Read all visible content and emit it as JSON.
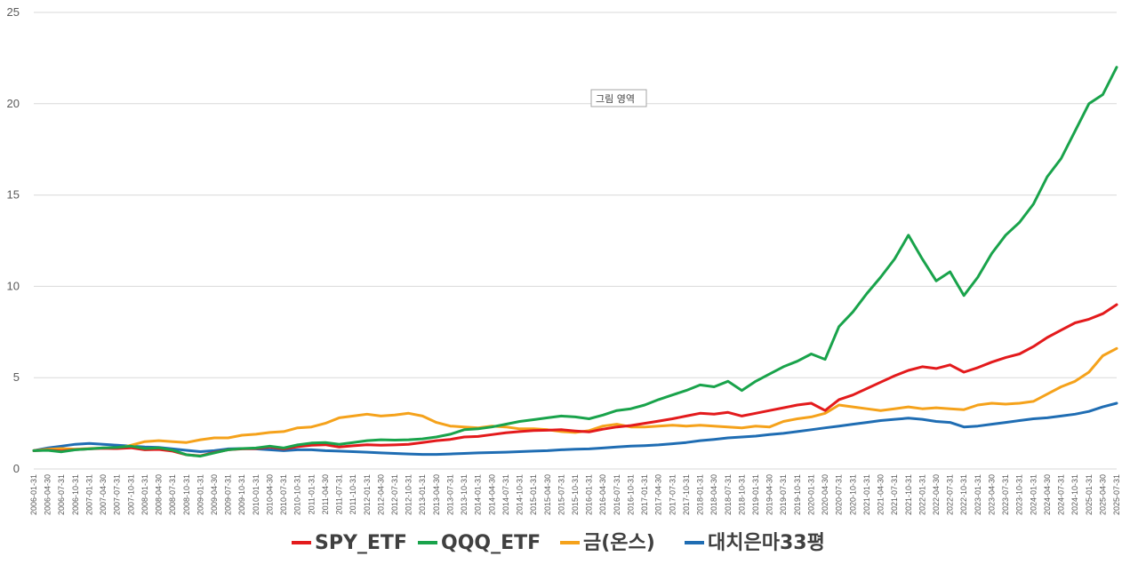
{
  "tooltip": "그림 영역",
  "chart_data": {
    "type": "line",
    "title": "",
    "xlabel": "",
    "ylabel": "",
    "ylim": [
      0,
      25
    ],
    "yticks": [
      0,
      5,
      10,
      15,
      20,
      25
    ],
    "xtick_labels": [
      "2006-01-31",
      "2006-04-30",
      "2006-07-31",
      "2006-10-31",
      "2007-01-31",
      "2007-04-30",
      "2007-07-31",
      "2007-10-31",
      "2008-01-31",
      "2008-04-30",
      "2008-07-31",
      "2008-10-31",
      "2009-01-31",
      "2009-04-30",
      "2009-07-31",
      "2009-10-31",
      "2010-01-31",
      "2010-04-30",
      "2010-07-31",
      "2010-10-31",
      "2011-01-31",
      "2011-04-30",
      "2011-07-31",
      "2011-10-31",
      "2012-01-31",
      "2012-04-30",
      "2012-07-31",
      "2012-10-31",
      "2013-01-31",
      "2013-04-30",
      "2013-07-31",
      "2013-10-31",
      "2014-01-31",
      "2014-04-30",
      "2014-07-31",
      "2014-10-31",
      "2015-01-31",
      "2015-04-30",
      "2015-07-31",
      "2015-10-31",
      "2016-01-31",
      "2016-04-30",
      "2016-07-31",
      "2016-10-31",
      "2017-01-31",
      "2017-04-30",
      "2017-07-31",
      "2017-10-31",
      "2018-01-31",
      "2018-04-30",
      "2018-07-31",
      "2018-10-31",
      "2019-01-31",
      "2019-04-30",
      "2019-07-31",
      "2019-10-31",
      "2020-01-31",
      "2020-04-30",
      "2020-07-31",
      "2020-10-31",
      "2021-01-31",
      "2021-04-30",
      "2021-07-31",
      "2021-10-31",
      "2022-01-31",
      "2022-04-30",
      "2022-07-31",
      "2022-10-31",
      "2023-01-31",
      "2023-04-30",
      "2023-07-31",
      "2023-10-31",
      "2024-01-31",
      "2024-04-30",
      "2024-07-31",
      "2024-10-31",
      "2025-01-31",
      "2025-04-30",
      "2025-07-31"
    ],
    "grid": "horizontal",
    "legend_position": "bottom",
    "series": [
      {
        "name": "SPY_ETF",
        "color": "#e31a1c",
        "values": [
          1.0,
          1.03,
          0.98,
          1.06,
          1.1,
          1.13,
          1.12,
          1.16,
          1.05,
          1.07,
          0.98,
          0.78,
          0.72,
          0.9,
          1.05,
          1.1,
          1.12,
          1.2,
          1.1,
          1.22,
          1.3,
          1.33,
          1.2,
          1.27,
          1.33,
          1.3,
          1.32,
          1.35,
          1.45,
          1.55,
          1.62,
          1.75,
          1.78,
          1.88,
          1.98,
          2.05,
          2.1,
          2.12,
          2.15,
          2.08,
          2.03,
          2.18,
          2.3,
          2.38,
          2.5,
          2.62,
          2.75,
          2.9,
          3.05,
          3.0,
          3.1,
          2.9,
          3.05,
          3.2,
          3.35,
          3.5,
          3.6,
          3.2,
          3.8,
          4.05,
          4.4,
          4.75,
          5.1,
          5.4,
          5.6,
          5.5,
          5.7,
          5.3,
          5.55,
          5.85,
          6.1,
          6.3,
          6.7,
          7.2,
          7.6,
          8.0,
          8.2,
          8.5,
          9.0
        ]
      },
      {
        "name": "QQQ_ETF",
        "color": "#19a34b",
        "values": [
          1.0,
          1.02,
          0.94,
          1.05,
          1.1,
          1.16,
          1.18,
          1.25,
          1.12,
          1.16,
          1.03,
          0.78,
          0.7,
          0.88,
          1.05,
          1.12,
          1.15,
          1.25,
          1.15,
          1.32,
          1.42,
          1.45,
          1.35,
          1.45,
          1.55,
          1.6,
          1.58,
          1.6,
          1.65,
          1.75,
          1.9,
          2.15,
          2.2,
          2.3,
          2.45,
          2.6,
          2.7,
          2.8,
          2.9,
          2.85,
          2.75,
          2.95,
          3.2,
          3.3,
          3.5,
          3.8,
          4.05,
          4.3,
          4.6,
          4.5,
          4.8,
          4.3,
          4.8,
          5.2,
          5.6,
          5.9,
          6.3,
          6.0,
          7.8,
          8.6,
          9.6,
          10.5,
          11.5,
          12.8,
          11.5,
          10.3,
          10.8,
          9.5,
          10.5,
          11.8,
          12.8,
          13.5,
          14.5,
          16.0,
          17.0,
          18.5,
          20.0,
          20.5,
          22.0
        ]
      },
      {
        "name": "금(온스)",
        "color": "#f5a21b",
        "values": [
          1.0,
          1.08,
          1.12,
          1.08,
          1.12,
          1.15,
          1.13,
          1.3,
          1.5,
          1.55,
          1.5,
          1.45,
          1.6,
          1.7,
          1.7,
          1.85,
          1.9,
          2.0,
          2.05,
          2.25,
          2.3,
          2.5,
          2.8,
          2.9,
          3.0,
          2.9,
          2.95,
          3.05,
          2.9,
          2.55,
          2.35,
          2.3,
          2.25,
          2.35,
          2.3,
          2.2,
          2.2,
          2.15,
          2.05,
          2.0,
          2.1,
          2.35,
          2.45,
          2.3,
          2.3,
          2.35,
          2.4,
          2.35,
          2.4,
          2.35,
          2.3,
          2.25,
          2.35,
          2.3,
          2.6,
          2.75,
          2.85,
          3.05,
          3.5,
          3.4,
          3.3,
          3.2,
          3.3,
          3.4,
          3.3,
          3.35,
          3.3,
          3.25,
          3.5,
          3.6,
          3.55,
          3.6,
          3.7,
          4.1,
          4.5,
          4.8,
          5.3,
          6.2,
          6.6
        ]
      },
      {
        "name": "대치은마33평",
        "color": "#1f6db3",
        "values": [
          1.0,
          1.15,
          1.25,
          1.35,
          1.4,
          1.35,
          1.3,
          1.25,
          1.2,
          1.18,
          1.1,
          1.02,
          0.95,
          1.0,
          1.1,
          1.12,
          1.1,
          1.05,
          1.0,
          1.05,
          1.05,
          1.0,
          0.98,
          0.95,
          0.92,
          0.88,
          0.85,
          0.82,
          0.8,
          0.8,
          0.82,
          0.85,
          0.88,
          0.9,
          0.92,
          0.95,
          0.98,
          1.0,
          1.05,
          1.08,
          1.1,
          1.15,
          1.2,
          1.25,
          1.28,
          1.32,
          1.38,
          1.45,
          1.55,
          1.62,
          1.7,
          1.75,
          1.8,
          1.88,
          1.95,
          2.05,
          2.15,
          2.25,
          2.35,
          2.45,
          2.55,
          2.65,
          2.72,
          2.78,
          2.72,
          2.6,
          2.55,
          2.3,
          2.35,
          2.45,
          2.55,
          2.65,
          2.75,
          2.8,
          2.9,
          3.0,
          3.15,
          3.4,
          3.6
        ]
      }
    ]
  }
}
